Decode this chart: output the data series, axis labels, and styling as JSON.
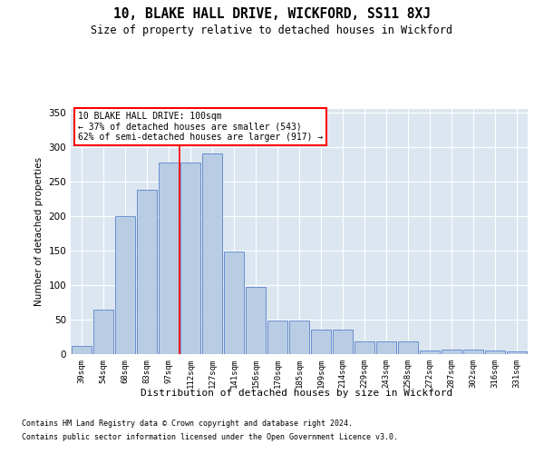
{
  "title": "10, BLAKE HALL DRIVE, WICKFORD, SS11 8XJ",
  "subtitle": "Size of property relative to detached houses in Wickford",
  "xlabel": "Distribution of detached houses by size in Wickford",
  "ylabel": "Number of detached properties",
  "categories": [
    "39sqm",
    "54sqm",
    "68sqm",
    "83sqm",
    "97sqm",
    "112sqm",
    "127sqm",
    "141sqm",
    "156sqm",
    "170sqm",
    "185sqm",
    "199sqm",
    "214sqm",
    "229sqm",
    "243sqm",
    "258sqm",
    "272sqm",
    "287sqm",
    "302sqm",
    "316sqm",
    "331sqm"
  ],
  "values": [
    12,
    64,
    200,
    238,
    278,
    278,
    291,
    148,
    97,
    49,
    49,
    35,
    35,
    19,
    19,
    19,
    5,
    7,
    7,
    5,
    4
  ],
  "bar_color": "#b8cce4",
  "bar_edge_color": "#4472c4",
  "background_color": "#dce6f1",
  "grid_color": "#ffffff",
  "annotation_box_text": "10 BLAKE HALL DRIVE: 100sqm\n← 37% of detached houses are smaller (543)\n62% of semi-detached houses are larger (917) →",
  "vline_color": "red",
  "ylim": [
    0,
    355
  ],
  "yticks": [
    0,
    50,
    100,
    150,
    200,
    250,
    300,
    350
  ],
  "footer1": "Contains HM Land Registry data © Crown copyright and database right 2024.",
  "footer2": "Contains public sector information licensed under the Open Government Licence v3.0."
}
